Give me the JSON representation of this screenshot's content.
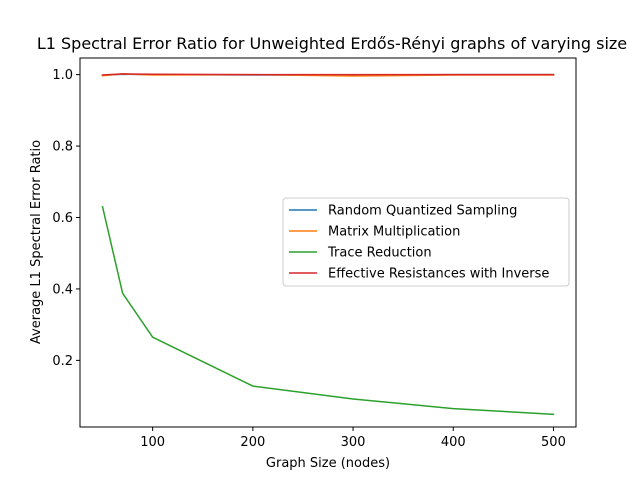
{
  "chart_data": {
    "type": "line",
    "title": "L1 Spectral Error Ratio for Unweighted Erdős-Rényi graphs of varying size",
    "xlabel": "Graph Size (nodes)",
    "ylabel": "Average L1 Spectral Error Ratio",
    "xlim": [
      27.5,
      522.5
    ],
    "ylim": [
      0.0135,
      1.0465
    ],
    "xticks": [
      100,
      200,
      300,
      400,
      500
    ],
    "xtick_labels": [
      "100",
      "200",
      "300",
      "400",
      "500"
    ],
    "yticks": [
      0.2,
      0.4,
      0.6,
      0.8,
      1.0
    ],
    "ytick_labels": [
      "0.2",
      "0.4",
      "0.6",
      "0.8",
      "1.0"
    ],
    "grid": false,
    "legend_position": "center-right",
    "x": [
      50,
      70,
      100,
      200,
      300,
      400,
      500
    ],
    "series": [
      {
        "name": "Random Quantized Sampling",
        "color": "#1f77b4",
        "values": [
          0.998,
          1.001,
          1.0,
          0.999,
          0.999,
          1.0,
          1.0
        ]
      },
      {
        "name": "Matrix Multiplication",
        "color": "#ff7f0e",
        "values": [
          0.997,
          1.002,
          0.999,
          1.0,
          0.996,
          0.999,
          0.999
        ]
      },
      {
        "name": "Trace Reduction",
        "color": "#2ca02c",
        "values": [
          0.63,
          0.388,
          0.265,
          0.128,
          0.092,
          0.065,
          0.049
        ]
      },
      {
        "name": "Effective Resistances with Inverse",
        "color": "#d62728",
        "values": [
          0.999,
          1.002,
          1.001,
          1.0,
          1.0,
          1.0,
          1.0
        ]
      }
    ]
  }
}
